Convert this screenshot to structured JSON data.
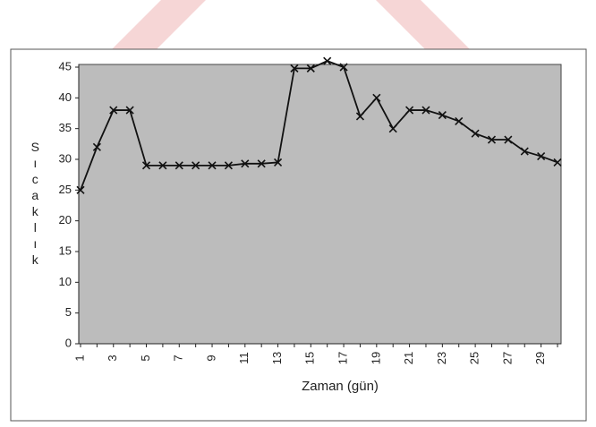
{
  "chart_data": {
    "type": "line",
    "xlabel": "Zaman (gün)",
    "ylabel": "Sıcaklık",
    "categories": [
      "1",
      null,
      "3",
      null,
      "5",
      null,
      "7",
      null,
      "9",
      null,
      "11",
      null,
      "13",
      null,
      "15",
      null,
      "17",
      null,
      "19",
      null,
      "21",
      null,
      "23",
      null,
      "25",
      null,
      "27",
      null,
      "29",
      null
    ],
    "series": [
      {
        "name": "Sıcaklık",
        "color": "#111111",
        "marker": "x",
        "values": [
          25,
          32,
          38,
          38,
          29,
          29,
          29,
          29,
          29,
          29,
          29.3,
          29.3,
          29.5,
          44.8,
          44.8,
          46,
          45,
          37,
          40,
          35,
          38,
          38,
          37.2,
          36.2,
          34.2,
          33.2,
          33.2,
          31.3,
          30.5,
          29.5
        ]
      }
    ],
    "ylim": [
      0,
      45
    ],
    "yticks": [
      0,
      5,
      10,
      15,
      20,
      25,
      30,
      35,
      40,
      45
    ],
    "grid": false
  }
}
